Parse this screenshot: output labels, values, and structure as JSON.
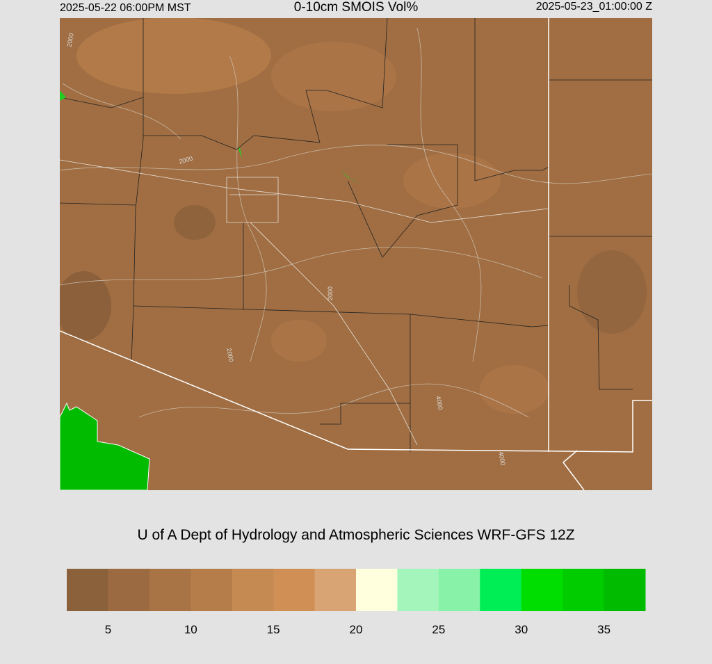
{
  "header": {
    "left": "2025-05-22 06:00PM MST",
    "title": "0-10cm SMOIS Vol%",
    "right": "2025-05-23_01:00:00 Z"
  },
  "map": {
    "contour_labels": [
      "2000",
      "2000",
      "2000",
      "2000",
      "4000",
      "4000"
    ]
  },
  "credit": "U of A Dept of Hydrology and Atmospheric Sciences WRF-GFS 12Z",
  "colorbar": {
    "colors": [
      "#8a613b",
      "#9b6a40",
      "#a87345",
      "#b57d4a",
      "#c48a52",
      "#d08f55",
      "#d8a474",
      "#fffedd",
      "#a4f5bb",
      "#88f2a8",
      "#00ee55",
      "#00dd00",
      "#00cc00",
      "#00bb00"
    ],
    "range": [
      2.5,
      37.5
    ],
    "ticks": [
      5,
      10,
      15,
      20,
      25,
      30,
      35
    ]
  }
}
